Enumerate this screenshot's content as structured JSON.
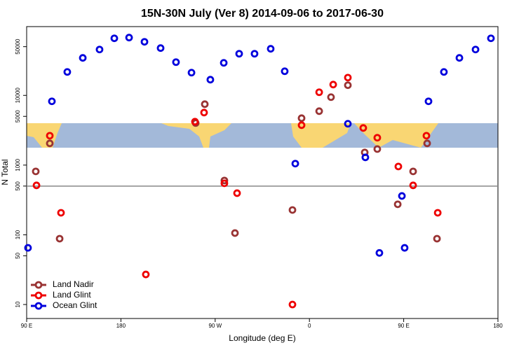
{
  "chart_data": {
    "type": "scatter",
    "title": "15N-30N July (Ver 8)   2014-09-06 to 2017-06-30",
    "x_label": "Longitude (deg E)",
    "y_label": "N Total",
    "log_y": true,
    "xlim": [
      90,
      540
    ],
    "ylim": [
      6.3,
      97000
    ],
    "xticks": [
      {
        "value": 90,
        "label": "90 E"
      },
      180,
      {
        "value": 270,
        "label": "90 W"
      },
      {
        "value": 360,
        "label": "0"
      },
      {
        "value": 450,
        "label": "90 E"
      },
      {
        "value": 540,
        "label": "180"
      }
    ],
    "yticks": [
      10,
      50,
      100,
      500,
      1000,
      5000,
      10000,
      50000
    ],
    "hline": 500,
    "legend": "lower left",
    "series": [
      {
        "name": "Land Nadir",
        "color": "#993333",
        "x": [
          98.7,
          112.1,
          121.5,
          260.1,
          251.4,
          278.8,
          288.9,
          343.8,
          352.5,
          369.3,
          380.6,
          396.7,
          412.8,
          424.8,
          444.3,
          459.0,
          472.4,
          481.8
        ],
        "values": [
          812,
          2050,
          88,
          7480,
          4010,
          601,
          106,
          227,
          4710,
          5940,
          9440,
          14000,
          1520,
          1700,
          274,
          812,
          2050,
          88
        ]
      },
      {
        "name": "Land Glint",
        "color": "#ee0000",
        "x": [
          99.4,
          112.1,
          122.8,
          203.8,
          250.7,
          259.4,
          278.8,
          290.9,
          343.8,
          352.5,
          369.3,
          382.7,
          396.7,
          411.4,
          424.8,
          444.9,
          459.0,
          471.7,
          482.5
        ],
        "values": [
          512,
          2640,
          207,
          27,
          4200,
          5670,
          548,
          396,
          10,
          3740,
          11100,
          14300,
          18000,
          3410,
          2470,
          955,
          512,
          2640,
          207
        ]
      },
      {
        "name": "Ocean Glint",
        "color": "#0000dd",
        "x": [
          91.3,
          114.1,
          128.8,
          143.6,
          159.6,
          173.7,
          187.8,
          202.5,
          217.9,
          232.6,
          247.4,
          265.4,
          278.2,
          292.9,
          307.6,
          323.0,
          336.4,
          346.5,
          396.7,
          413.4,
          426.8,
          448.3,
          450.9,
          473.7,
          488.4,
          503.2,
          518.6,
          533.3
        ],
        "values": [
          65,
          8220,
          21700,
          34500,
          45500,
          65900,
          67500,
          58700,
          47700,
          30000,
          21200,
          16800,
          29300,
          39600,
          39600,
          46600,
          22200,
          1050,
          3920,
          1290,
          55,
          361,
          65,
          8220,
          21700,
          34500,
          45500,
          65900
        ]
      }
    ]
  }
}
